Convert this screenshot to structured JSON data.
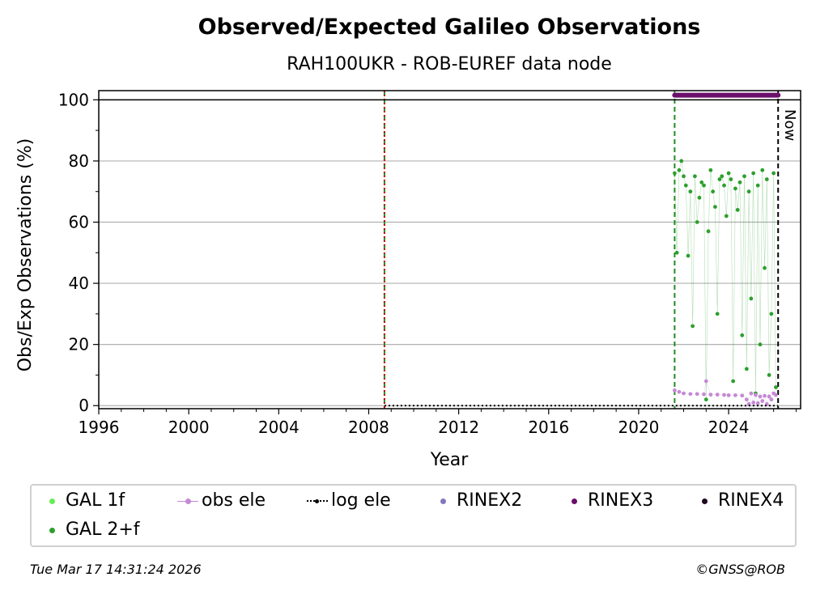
{
  "chart_data": {
    "type": "scatter",
    "title": "Observed/Expected Galileo Observations",
    "subtitle": "RAH100UKR - ROB-EUREF data node",
    "xlabel": "Year",
    "ylabel": "Obs/Exp Observations (%)",
    "xlim": [
      1996,
      2027.2
    ],
    "ylim": [
      -1,
      103
    ],
    "x_ticks": [
      "1996",
      "2000",
      "2004",
      "2008",
      "2012",
      "2016",
      "2020",
      "2024"
    ],
    "y_ticks": [
      "0",
      "20",
      "40",
      "60",
      "80",
      "100"
    ],
    "grid": "horizontal",
    "now_label": "Now",
    "now_x": 2026.2,
    "vlines": [
      {
        "x": 2008.7,
        "color": "#228B22",
        "style": "dashed"
      },
      {
        "x": 2008.7,
        "color": "#cc0000",
        "style": "dotted"
      },
      {
        "x": 2021.6,
        "color": "#228B22",
        "style": "dashed"
      },
      {
        "x": 2026.2,
        "color": "#000000",
        "style": "dashed"
      }
    ],
    "hlines": [
      {
        "y": 100,
        "color": "#000000"
      }
    ],
    "series": [
      {
        "name": "GAL 1f",
        "color": "#66ee55",
        "x": [],
        "y": []
      },
      {
        "name": "GAL 2+f",
        "color": "#2ca02c",
        "x": [
          2021.6,
          2021.7,
          2021.8,
          2021.9,
          2022.0,
          2022.1,
          2022.2,
          2022.3,
          2022.4,
          2022.5,
          2022.6,
          2022.7,
          2022.8,
          2022.9,
          2023.0,
          2023.1,
          2023.2,
          2023.3,
          2023.4,
          2023.5,
          2023.6,
          2023.7,
          2023.8,
          2023.9,
          2024.0,
          2024.1,
          2024.2,
          2024.3,
          2024.4,
          2024.5,
          2024.6,
          2024.7,
          2024.8,
          2024.9,
          2025.0,
          2025.1,
          2025.2,
          2025.3,
          2025.4,
          2025.5,
          2025.6,
          2025.7,
          2025.8,
          2025.9,
          2026.0,
          2026.1
        ],
        "y": [
          76,
          50,
          77,
          80,
          75,
          72,
          49,
          70,
          26,
          75,
          60,
          68,
          73,
          72,
          2,
          57,
          77,
          70,
          65,
          30,
          74,
          75,
          72,
          62,
          76,
          74,
          8,
          71,
          64,
          73,
          23,
          75,
          12,
          70,
          35,
          76,
          4,
          72,
          20,
          77,
          45,
          74,
          10,
          30,
          76,
          6
        ]
      },
      {
        "name": "obs ele",
        "color": "#c58ad4",
        "x": [
          2021.6,
          2021.8,
          2022.0,
          2022.3,
          2022.6,
          2022.9,
          2023.0,
          2023.2,
          2023.5,
          2023.8,
          2024.0,
          2024.3,
          2024.6,
          2024.8,
          2024.9,
          2025.0,
          2025.1,
          2025.2,
          2025.3,
          2025.4,
          2025.5,
          2025.6,
          2025.7,
          2025.8,
          2025.9,
          2026.0,
          2026.1
        ],
        "y": [
          5,
          4.5,
          4,
          3.8,
          3.8,
          3.7,
          8,
          3.6,
          3.6,
          3.5,
          3.4,
          3.4,
          3.3,
          2,
          0.5,
          4,
          1,
          3.5,
          0.8,
          3,
          1.5,
          3.2,
          0.5,
          3,
          2,
          4,
          3.5
        ]
      },
      {
        "name": "log ele",
        "color": "#000000",
        "x": [
          2008.7,
          2026.2
        ],
        "y": [
          0,
          0
        ]
      },
      {
        "name": "RINEX2",
        "color": "#8477bf",
        "x": [],
        "y": []
      },
      {
        "name": "RINEX3",
        "color": "#6b0f6b",
        "x": [
          2021.6,
          2026.2
        ],
        "y": [
          101.5,
          101.5
        ]
      },
      {
        "name": "RINEX4",
        "color": "#1f0a1f",
        "x": [],
        "y": []
      }
    ]
  },
  "legend": {
    "gal1f": "GAL 1f",
    "gal2f": "GAL 2+f",
    "obs_ele": "obs ele",
    "log_ele": "log ele",
    "rinex2": "RINEX2",
    "rinex3": "RINEX3",
    "rinex4": "RINEX4"
  },
  "footer": {
    "timestamp": "Tue Mar 17 14:31:24 2026",
    "credit": "©GNSS@ROB"
  }
}
